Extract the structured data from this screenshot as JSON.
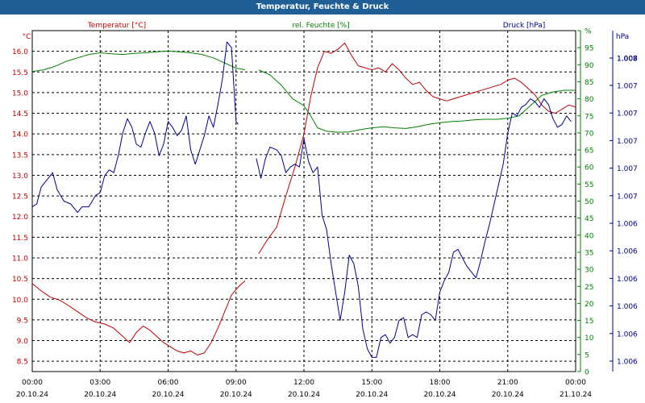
{
  "window": {
    "title": "Temperatur, Feuchte & Druck"
  },
  "chart_data": {
    "type": "line",
    "title": "Temperatur, Feuchte & Druck",
    "x_ticks": [
      {
        "h": 0,
        "time": "00:00",
        "date": "20.10.24"
      },
      {
        "h": 3,
        "time": "03:00",
        "date": "20.10.24"
      },
      {
        "h": 6,
        "time": "06:00",
        "date": "20.10.24"
      },
      {
        "h": 9,
        "time": "09:00",
        "date": "20.10.24"
      },
      {
        "h": 12,
        "time": "12:00",
        "date": "20.10.24"
      },
      {
        "h": 15,
        "time": "15:00",
        "date": "20.10.24"
      },
      {
        "h": 18,
        "time": "18:00",
        "date": "20.10.24"
      },
      {
        "h": 21,
        "time": "21:00",
        "date": "20.10.24"
      },
      {
        "h": 24,
        "time": "00:00",
        "date": "21.10.24"
      }
    ],
    "xlim": [
      0,
      24
    ],
    "axes": {
      "temperature": {
        "label": "Temperatur [°C]",
        "unit": "°C",
        "color": "#c00000",
        "ylim": [
          8.25,
          16.5
        ],
        "ticks": [
          "8.5",
          "9.0",
          "9.5",
          "10.0",
          "10.5",
          "11.0",
          "11.5",
          "12.0",
          "12.5",
          "13.0",
          "13.5",
          "14.0",
          "14.5",
          "15.0",
          "15.5",
          "16.0"
        ]
      },
      "humidity": {
        "label": "rel. Feuchte [%]",
        "unit": "%",
        "color": "#008000",
        "ylim": [
          0,
          100
        ],
        "ticks": [
          "0",
          "5",
          "10",
          "15",
          "20",
          "25",
          "30",
          "35",
          "40",
          "45",
          "50",
          "55",
          "60",
          "65",
          "70",
          "75",
          "80",
          "85",
          "90",
          "95",
          "%"
        ]
      },
      "pressure": {
        "label": "Druck [hPa]",
        "unit": "hPa",
        "color": "#00008b",
        "ylim": [
          0,
          12
        ],
        "ticks": [
          "1.006",
          "1.006",
          "1.006",
          "1.006",
          "1.006",
          "1.006",
          "1.007",
          "1.007",
          "1.007",
          "1.007",
          "1.007",
          "1.007",
          "1.008",
          "1.008",
          "1.008"
        ]
      }
    },
    "series": [
      {
        "name": "Temperatur",
        "axis": "temperature",
        "segments": [
          [
            [
              0,
              10.38
            ],
            [
              0.4,
              10.2
            ],
            [
              0.8,
              10.05
            ],
            [
              1.2,
              9.98
            ],
            [
              1.6,
              9.85
            ],
            [
              2.0,
              9.7
            ],
            [
              2.4,
              9.55
            ],
            [
              2.8,
              9.45
            ],
            [
              3.2,
              9.4
            ],
            [
              3.6,
              9.3
            ],
            [
              4.0,
              9.1
            ],
            [
              4.3,
              8.95
            ],
            [
              4.6,
              9.2
            ],
            [
              4.9,
              9.35
            ],
            [
              5.2,
              9.25
            ],
            [
              5.5,
              9.1
            ],
            [
              5.8,
              8.95
            ],
            [
              6.1,
              8.85
            ],
            [
              6.4,
              8.75
            ],
            [
              6.7,
              8.7
            ],
            [
              7.0,
              8.75
            ],
            [
              7.3,
              8.65
            ],
            [
              7.6,
              8.7
            ],
            [
              7.9,
              8.95
            ],
            [
              8.2,
              9.3
            ],
            [
              8.5,
              9.7
            ],
            [
              8.8,
              10.1
            ],
            [
              9.1,
              10.3
            ],
            [
              9.4,
              10.45
            ]
          ],
          [
            [
              10.0,
              11.1
            ],
            [
              10.4,
              11.45
            ],
            [
              10.8,
              11.75
            ],
            [
              11.2,
              12.5
            ],
            [
              11.6,
              13.2
            ],
            [
              12.0,
              14.0
            ],
            [
              12.3,
              14.9
            ],
            [
              12.6,
              15.6
            ],
            [
              12.9,
              16.0
            ],
            [
              13.2,
              15.95
            ],
            [
              13.5,
              16.05
            ],
            [
              13.8,
              16.2
            ],
            [
              14.1,
              15.9
            ],
            [
              14.4,
              15.65
            ],
            [
              14.7,
              15.6
            ],
            [
              15.0,
              15.55
            ],
            [
              15.3,
              15.6
            ],
            [
              15.6,
              15.5
            ],
            [
              15.9,
              15.7
            ],
            [
              16.2,
              15.55
            ],
            [
              16.5,
              15.35
            ],
            [
              16.8,
              15.2
            ],
            [
              17.1,
              15.25
            ],
            [
              17.4,
              15.05
            ],
            [
              17.7,
              14.9
            ],
            [
              18.0,
              14.85
            ],
            [
              18.3,
              14.8
            ],
            [
              18.6,
              14.85
            ],
            [
              18.9,
              14.9
            ],
            [
              19.2,
              14.95
            ],
            [
              19.5,
              15.0
            ],
            [
              19.8,
              15.05
            ],
            [
              20.1,
              15.1
            ],
            [
              20.4,
              15.15
            ],
            [
              20.7,
              15.2
            ],
            [
              21.0,
              15.3
            ],
            [
              21.3,
              15.35
            ],
            [
              21.6,
              15.25
            ],
            [
              21.9,
              15.1
            ],
            [
              22.2,
              14.95
            ],
            [
              22.5,
              14.7
            ],
            [
              22.8,
              14.55
            ],
            [
              23.1,
              14.5
            ],
            [
              23.4,
              14.6
            ],
            [
              23.7,
              14.7
            ],
            [
              24.0,
              14.65
            ]
          ]
        ]
      },
      {
        "name": "rel. Feuchte",
        "axis": "humidity",
        "segments": [
          [
            [
              0,
              88
            ],
            [
              0.5,
              88.5
            ],
            [
              1.0,
              89.5
            ],
            [
              1.5,
              91
            ],
            [
              2.0,
              92
            ],
            [
              2.5,
              93
            ],
            [
              3.0,
              93.5
            ],
            [
              3.5,
              93.2
            ],
            [
              4.0,
              93.0
            ],
            [
              4.5,
              93.3
            ],
            [
              5.0,
              93.5
            ],
            [
              5.5,
              93.8
            ],
            [
              6.0,
              94.0
            ],
            [
              6.5,
              93.8
            ],
            [
              7.0,
              93.5
            ],
            [
              7.5,
              93.0
            ],
            [
              8.0,
              92.0
            ],
            [
              8.5,
              90.5
            ],
            [
              9.0,
              89.0
            ],
            [
              9.4,
              88.5
            ]
          ],
          [
            [
              10.0,
              88.5
            ],
            [
              10.5,
              87
            ],
            [
              11.0,
              84
            ],
            [
              11.5,
              80
            ],
            [
              12.0,
              78
            ],
            [
              12.3,
              75
            ],
            [
              12.6,
              71.5
            ],
            [
              13.0,
              70.5
            ],
            [
              13.5,
              70.2
            ],
            [
              14.0,
              70.3
            ],
            [
              14.5,
              71.0
            ],
            [
              15.0,
              71.5
            ],
            [
              15.5,
              71.8
            ],
            [
              16.0,
              71.5
            ],
            [
              16.5,
              71.3
            ],
            [
              17.0,
              71.8
            ],
            [
              17.5,
              72.5
            ],
            [
              18.0,
              73.0
            ],
            [
              18.5,
              73.3
            ],
            [
              19.0,
              73.5
            ],
            [
              19.5,
              73.8
            ],
            [
              20.0,
              74.0
            ],
            [
              20.5,
              74.0
            ],
            [
              21.0,
              74.3
            ],
            [
              21.5,
              75.0
            ],
            [
              22.0,
              78.0
            ],
            [
              22.5,
              81.0
            ],
            [
              23.0,
              82.0
            ],
            [
              23.5,
              82.5
            ],
            [
              24.0,
              82.5
            ]
          ]
        ]
      },
      {
        "name": "Druck",
        "axis": "pressure",
        "segments": [
          [
            [
              0,
              5.8
            ],
            [
              0.2,
              5.9
            ],
            [
              0.4,
              6.5
            ],
            [
              0.7,
              6.8
            ],
            [
              0.9,
              7.0
            ],
            [
              1.1,
              6.4
            ],
            [
              1.4,
              6.0
            ],
            [
              1.7,
              5.9
            ],
            [
              2.0,
              5.6
            ],
            [
              2.2,
              5.8
            ],
            [
              2.5,
              5.8
            ],
            [
              2.8,
              6.2
            ],
            [
              3.0,
              6.3
            ],
            [
              3.2,
              6.9
            ],
            [
              3.4,
              7.1
            ],
            [
              3.6,
              7.0
            ],
            [
              3.8,
              7.6
            ],
            [
              4.0,
              8.4
            ],
            [
              4.2,
              8.9
            ],
            [
              4.4,
              8.6
            ],
            [
              4.6,
              8.0
            ],
            [
              4.8,
              7.9
            ],
            [
              5.0,
              8.4
            ],
            [
              5.2,
              8.8
            ],
            [
              5.4,
              8.4
            ],
            [
              5.6,
              7.6
            ],
            [
              5.8,
              8.0
            ],
            [
              6.0,
              8.8
            ],
            [
              6.2,
              8.6
            ],
            [
              6.4,
              8.3
            ],
            [
              6.6,
              8.5
            ],
            [
              6.8,
              9.0
            ],
            [
              7.0,
              7.8
            ],
            [
              7.2,
              7.3
            ],
            [
              7.4,
              7.8
            ],
            [
              7.6,
              8.3
            ],
            [
              7.8,
              9.0
            ],
            [
              8.0,
              8.6
            ],
            [
              8.2,
              9.4
            ],
            [
              8.4,
              10.3
            ],
            [
              8.6,
              11.6
            ],
            [
              8.8,
              11.4
            ],
            [
              9.0,
              8.8
            ],
            [
              9.1,
              8.7
            ]
          ],
          [
            [
              9.9,
              7.5
            ],
            [
              10.1,
              6.8
            ],
            [
              10.3,
              7.5
            ],
            [
              10.5,
              7.9
            ],
            [
              10.8,
              7.8
            ],
            [
              11.0,
              7.6
            ],
            [
              11.2,
              7.0
            ],
            [
              11.4,
              7.2
            ],
            [
              11.6,
              7.3
            ],
            [
              11.8,
              7.2
            ],
            [
              12.0,
              8.2
            ],
            [
              12.2,
              7.4
            ],
            [
              12.4,
              7.0
            ],
            [
              12.6,
              7.2
            ],
            [
              12.8,
              5.5
            ],
            [
              13.0,
              5.0
            ],
            [
              13.2,
              3.8
            ],
            [
              13.4,
              2.8
            ],
            [
              13.6,
              1.8
            ],
            [
              13.8,
              2.8
            ],
            [
              14.0,
              4.1
            ],
            [
              14.2,
              3.8
            ],
            [
              14.4,
              3.0
            ],
            [
              14.6,
              1.5
            ],
            [
              14.8,
              0.8
            ],
            [
              15.0,
              0.5
            ],
            [
              15.2,
              0.5
            ],
            [
              15.4,
              1.2
            ],
            [
              15.6,
              1.3
            ],
            [
              15.8,
              1.0
            ],
            [
              16.0,
              1.2
            ],
            [
              16.2,
              1.8
            ],
            [
              16.4,
              1.9
            ],
            [
              16.6,
              1.2
            ],
            [
              16.8,
              1.3
            ],
            [
              17.0,
              1.2
            ],
            [
              17.2,
              2.0
            ],
            [
              17.4,
              2.1
            ],
            [
              17.6,
              2.0
            ],
            [
              17.8,
              1.8
            ],
            [
              18.0,
              2.8
            ],
            [
              18.2,
              3.2
            ],
            [
              18.4,
              3.5
            ],
            [
              18.6,
              4.2
            ],
            [
              18.8,
              4.3
            ],
            [
              19.0,
              4.0
            ],
            [
              19.2,
              3.7
            ],
            [
              19.4,
              3.5
            ],
            [
              19.6,
              3.3
            ],
            [
              19.8,
              3.9
            ],
            [
              20.0,
              4.6
            ],
            [
              20.2,
              5.2
            ],
            [
              20.4,
              5.9
            ],
            [
              20.6,
              6.6
            ],
            [
              20.8,
              7.3
            ],
            [
              21.0,
              8.4
            ],
            [
              21.2,
              9.1
            ],
            [
              21.4,
              9.0
            ],
            [
              21.6,
              9.3
            ],
            [
              21.8,
              9.4
            ],
            [
              22.0,
              9.6
            ],
            [
              22.2,
              9.5
            ],
            [
              22.4,
              9.3
            ],
            [
              22.6,
              9.6
            ],
            [
              22.8,
              9.4
            ],
            [
              23.0,
              8.9
            ],
            [
              23.2,
              8.6
            ],
            [
              23.4,
              8.7
            ],
            [
              23.6,
              9.0
            ],
            [
              23.8,
              8.8
            ]
          ]
        ]
      }
    ]
  }
}
